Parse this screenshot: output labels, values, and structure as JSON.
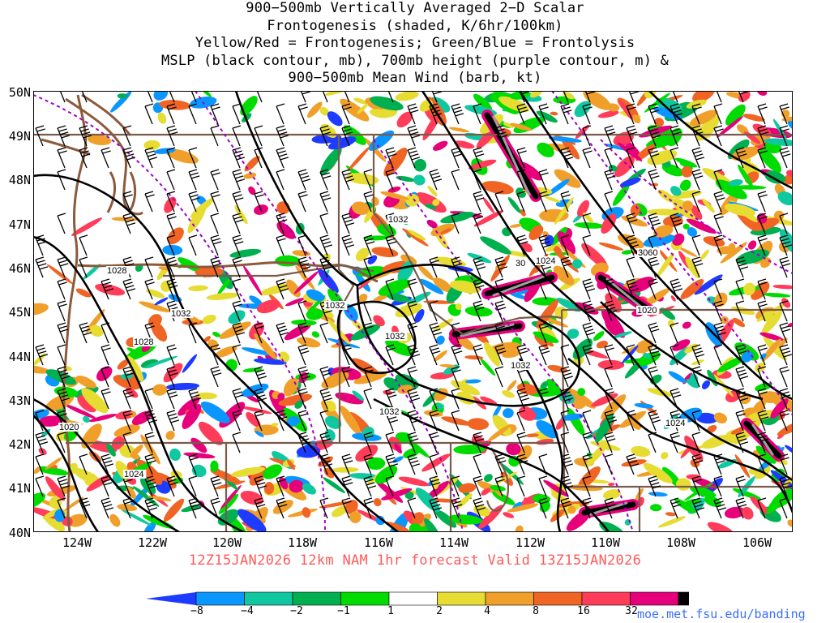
{
  "title_lines": [
    "900−500mb Vertically Averaged 2−D Scalar",
    "Frontogenesis (shaded, K/6hr/100km)",
    "Yellow/Red = Frontogenesis;  Green/Blue = Frontolysis",
    "MSLP (black contour, mb), 700mb height (purple contour, m) &",
    "900−500mb Mean Wind (barb, kt)"
  ],
  "latitude_labels": [
    "50N",
    "49N",
    "48N",
    "47N",
    "46N",
    "45N",
    "44N",
    "43N",
    "42N",
    "41N",
    "40N"
  ],
  "longitude_labels": [
    "124W",
    "122W",
    "120W",
    "118W",
    "116W",
    "114W",
    "112W",
    "110W",
    "108W",
    "106W"
  ],
  "isobar_labels": [
    "1032",
    "1032",
    "1032",
    "1032",
    "1032",
    "1032",
    "1028",
    "1028",
    "1024",
    "1024",
    "1024",
    "1020",
    "1020"
  ],
  "height_labels": [
    "30",
    "3060"
  ],
  "valid_time": "12Z15JAN2026  12km NAM  1hr forecast Valid  13Z15JAN2026",
  "colorbar": {
    "labels": [
      "−8",
      "−4",
      "−2",
      "−1",
      "1",
      "2",
      "4",
      "8",
      "16",
      "32"
    ],
    "colors": [
      "#1e3cff",
      "#0a96ff",
      "#10c8a0",
      "#00b050",
      "#00dc00",
      "#ffffff",
      "#e6dc32",
      "#f0a02a",
      "#f06424",
      "#ff3c5a",
      "#e6007a",
      "#000000",
      "#a0a0a0"
    ]
  },
  "credit": "moe.met.fsu.edu/banding",
  "map_colors": {
    "mslp_contour": "#000000",
    "height_contour": "#a000c8",
    "borders": "#8b5a3c",
    "state_lines": "#7a5a4a",
    "wind_barbs": "#000000"
  }
}
